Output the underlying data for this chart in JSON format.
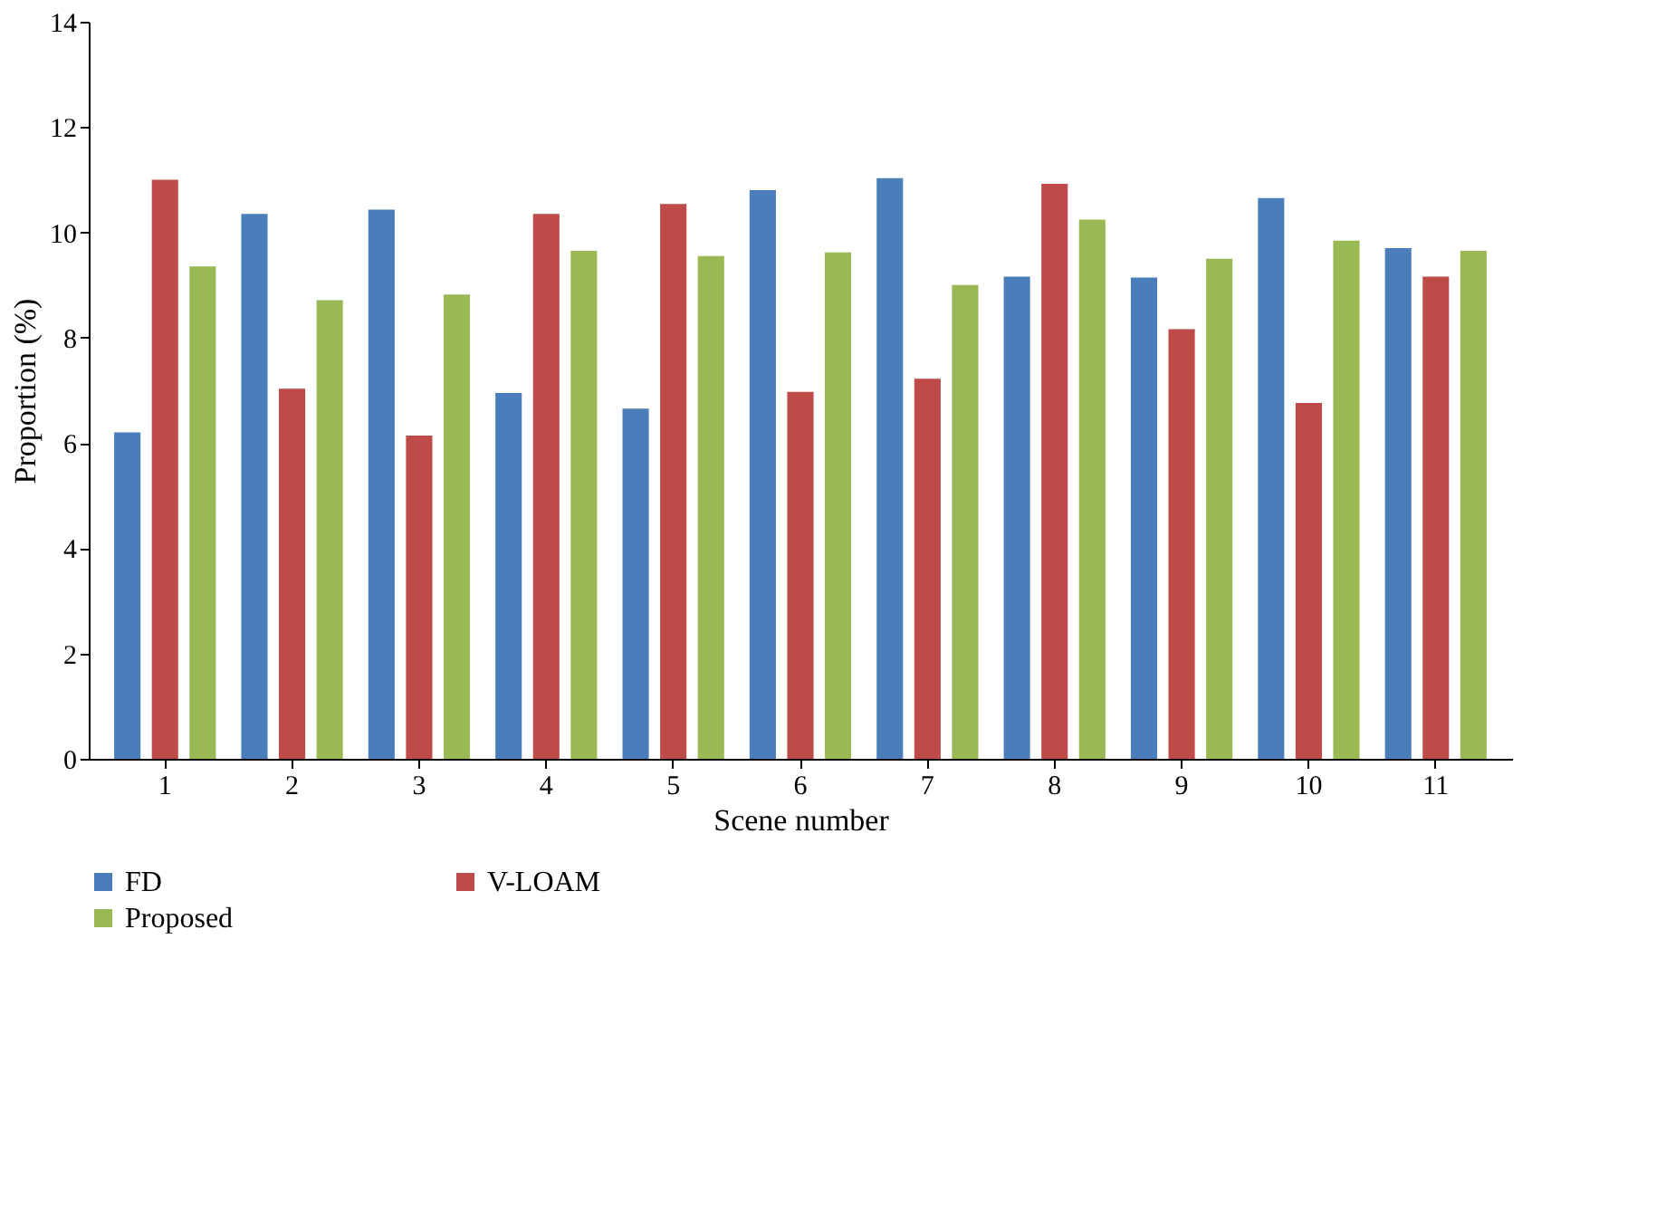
{
  "chart_data": {
    "type": "bar",
    "xlabel": "Scene number",
    "ylabel": "Proportion (%)",
    "categories": [
      "1",
      "2",
      "3",
      "4",
      "5",
      "6",
      "7",
      "8",
      "9",
      "10",
      "11"
    ],
    "series": [
      {
        "name": "FD",
        "color": "#4a7ebb",
        "values": [
          6.2,
          10.35,
          10.43,
          6.95,
          6.65,
          10.8,
          11.03,
          9.16,
          9.14,
          10.65,
          9.7
        ]
      },
      {
        "name": "V-LOAM",
        "color": "#be4b48",
        "values": [
          11.0,
          7.03,
          6.14,
          10.35,
          10.54,
          6.97,
          7.22,
          10.92,
          8.16,
          6.76,
          9.16
        ]
      },
      {
        "name": "Proposed",
        "color": "#98b954",
        "values": [
          9.35,
          8.71,
          8.82,
          9.65,
          9.55,
          9.62,
          9.0,
          10.24,
          9.5,
          9.84,
          9.65
        ]
      }
    ],
    "ylim": [
      0,
      14
    ],
    "yticks": [
      0,
      2,
      4,
      6,
      8,
      10,
      12,
      14
    ],
    "grid": false,
    "legend": "bottom left"
  }
}
